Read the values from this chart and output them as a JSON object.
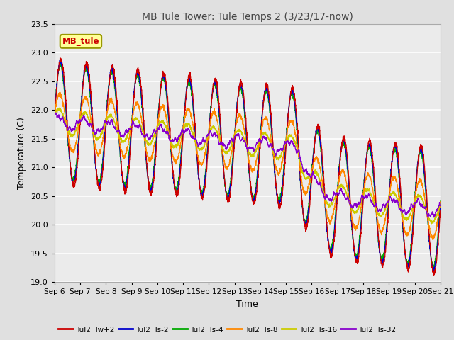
{
  "title": "MB Tule Tower: Tule Temps 2 (3/23/17-now)",
  "xlabel": "Time",
  "ylabel": "Temperature (C)",
  "ylim": [
    19.0,
    23.5
  ],
  "yticks": [
    19.0,
    19.5,
    20.0,
    20.5,
    21.0,
    21.5,
    22.0,
    22.5,
    23.0,
    23.5
  ],
  "xticklabels": [
    "Sep 6",
    "Sep 7",
    "Sep 8",
    "Sep 9",
    "Sep 10",
    "Sep 11",
    "Sep 12",
    "Sep 13",
    "Sep 14",
    "Sep 15",
    "Sep 16",
    "Sep 17",
    "Sep 18",
    "Sep 19",
    "Sep 20",
    "Sep 21"
  ],
  "line_colors": {
    "Tul2_Tw+2": "#cc0000",
    "Tul2_Ts-2": "#0000cc",
    "Tul2_Ts-4": "#00aa00",
    "Tul2_Ts-8": "#ff8800",
    "Tul2_Ts-16": "#cccc00",
    "Tul2_Ts-32": "#8800cc"
  },
  "legend_label": "MB_tule",
  "bg_color": "#e0e0e0",
  "plot_bg_color": "#ebebeb",
  "grid_color": "#ffffff"
}
